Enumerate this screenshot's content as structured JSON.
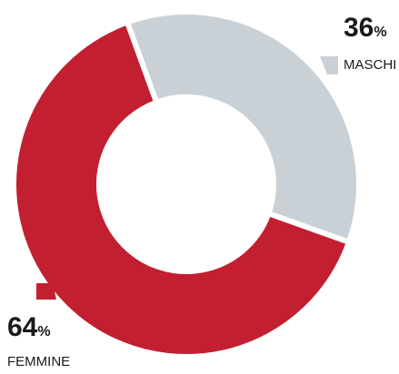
{
  "chart_data": {
    "type": "pie",
    "donut": true,
    "categories": [
      "MASCHI",
      "FEMMINE"
    ],
    "values": [
      36,
      64
    ],
    "value_labels": [
      "36%",
      "64%"
    ],
    "colors": [
      "#c9d1d7",
      "#c21f30"
    ]
  }
}
